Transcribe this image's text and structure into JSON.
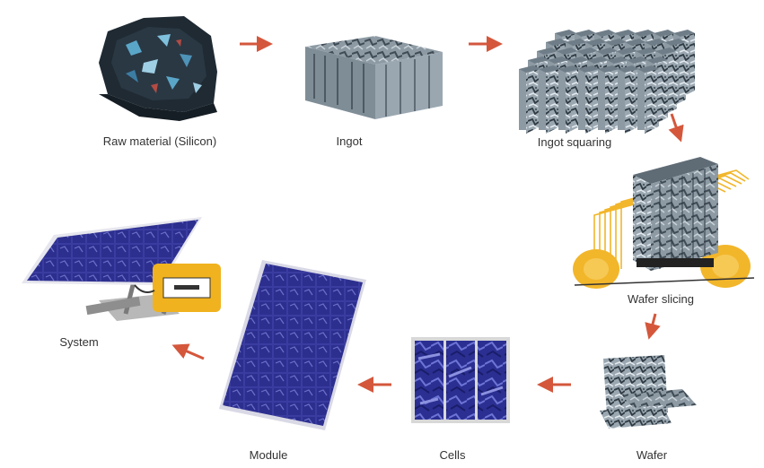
{
  "labels": {
    "raw_material": "Raw material (Silicon)",
    "ingot": "Ingot",
    "ingot_squaring": "Ingot squaring",
    "wafer_slicing": "Wafer slicing",
    "wafer": "Wafer",
    "cells": "Cells",
    "module": "Module",
    "system": "System"
  },
  "colors": {
    "arrow": "#d4573c",
    "silicon_dark": "#1f2a33",
    "silicon_blue": "#5aa6c8",
    "ingot_gray": "#7f8d97",
    "wire_yellow": "#f2b62b",
    "cell_blue": "#2c2f9a",
    "panel_blue": "#3d3f95",
    "inverter_yellow": "#f0b21e"
  }
}
